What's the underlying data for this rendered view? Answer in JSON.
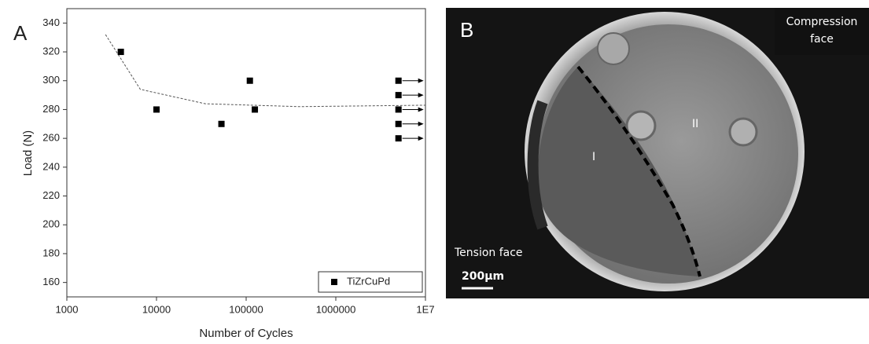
{
  "panels": [
    "A",
    "B"
  ],
  "chart_data": {
    "type": "scatter",
    "x_label": "Number of Cycles",
    "y_label": "Load (N)",
    "xscale": "log",
    "xlim": [
      1000,
      10000000
    ],
    "xticks": [
      1000,
      10000,
      100000,
      1000000,
      {
        "value": 10000000,
        "label": "1E7"
      }
    ],
    "ylim": [
      150,
      350
    ],
    "yticks": [
      160,
      180,
      200,
      220,
      240,
      260,
      280,
      300,
      320,
      340
    ],
    "legend": "lower right",
    "series": [
      {
        "name": "TiZrCuPd",
        "color": "#000000",
        "x": [
          4000,
          10000,
          53000,
          110000,
          125000,
          5000000,
          5000000,
          5000000,
          5000000,
          5000000
        ],
        "values": [
          320,
          280,
          270,
          300,
          280,
          300,
          290,
          280,
          270,
          260
        ],
        "runout": [
          false,
          false,
          false,
          false,
          false,
          true,
          true,
          true,
          true,
          true
        ]
      }
    ],
    "fit_line": {
      "x": [
        2700,
        6600,
        35000,
        390000,
        10000000
      ],
      "y": [
        332,
        294,
        284,
        282,
        283
      ],
      "color": "#555555"
    }
  },
  "micrograph": {
    "compression_label": [
      "Compression",
      "face"
    ],
    "region_labels": [
      "I",
      "II"
    ],
    "tension_label": "Tension face",
    "scale_bar": "200µm"
  }
}
